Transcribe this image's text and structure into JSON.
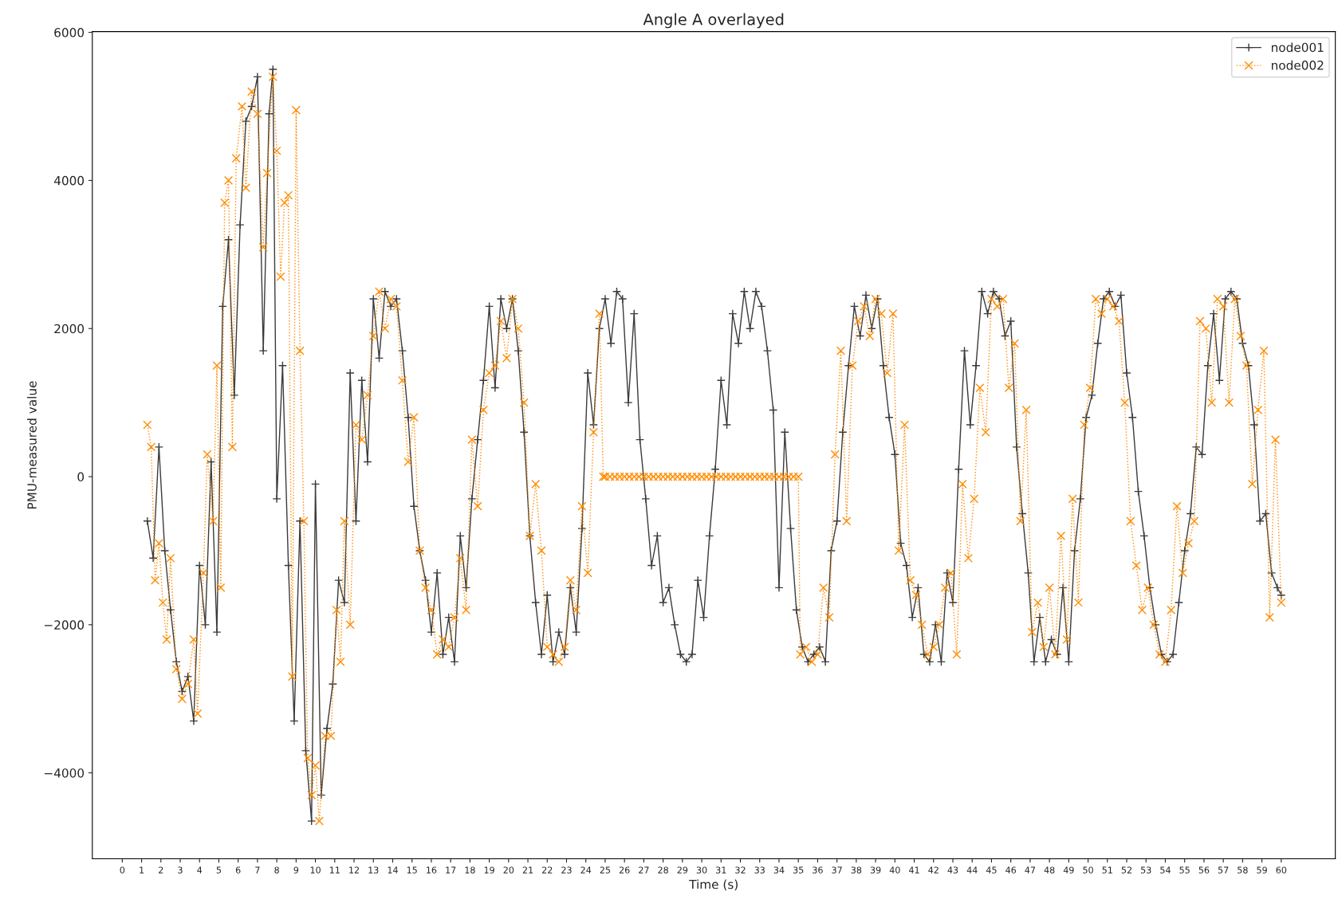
{
  "chart_data": {
    "type": "line",
    "title": "Angle A overlayed",
    "xlabel": "Time (s)",
    "ylabel": "PMU-measured value",
    "xlim": [
      -1.55,
      62.8
    ],
    "ylim": [
      -5160,
      6010
    ],
    "xticks": [
      0,
      1,
      2,
      3,
      4,
      5,
      6,
      7,
      8,
      9,
      10,
      11,
      12,
      13,
      14,
      15,
      16,
      17,
      18,
      19,
      20,
      21,
      22,
      23,
      24,
      25,
      26,
      27,
      28,
      29,
      30,
      31,
      32,
      33,
      34,
      35,
      36,
      37,
      38,
      39,
      40,
      41,
      42,
      43,
      44,
      45,
      46,
      47,
      48,
      49,
      50,
      51,
      52,
      53,
      54,
      55,
      56,
      57,
      58,
      59,
      60
    ],
    "yticks": [
      {
        "value": -4000,
        "label": "−4000"
      },
      {
        "value": -2000,
        "label": "−2000"
      },
      0,
      2000,
      4000,
      6000
    ],
    "grid": false,
    "legend": "top right",
    "series": [
      {
        "name": "node001",
        "color": "#3a3a3a",
        "marker": "cross",
        "line_style": "solid",
        "x": [
          1.3,
          1.6,
          1.9,
          2.2,
          2.5,
          2.8,
          3.1,
          3.4,
          3.7,
          4.0,
          4.3,
          4.6,
          4.9,
          5.2,
          5.5,
          5.8,
          6.1,
          6.4,
          6.7,
          7.0,
          7.3,
          7.6,
          7.8,
          8.0,
          8.3,
          8.6,
          8.9,
          9.2,
          9.5,
          9.8,
          10.0,
          10.3,
          10.6,
          10.9,
          11.2,
          11.5,
          11.8,
          12.1,
          12.4,
          12.7,
          13.0,
          13.3,
          13.6,
          13.9,
          14.2,
          14.5,
          14.8,
          15.1,
          15.4,
          15.7,
          16.0,
          16.3,
          16.6,
          16.9,
          17.2,
          17.5,
          17.8,
          18.1,
          18.4,
          18.7,
          19.0,
          19.3,
          19.6,
          19.9,
          20.2,
          20.5,
          20.8,
          21.1,
          21.4,
          21.7,
          22.0,
          22.3,
          22.6,
          22.9,
          23.2,
          23.5,
          23.8,
          24.1,
          24.4,
          24.7,
          25.0,
          25.3,
          25.6,
          25.9,
          26.2,
          26.5,
          26.8,
          27.1,
          27.4,
          27.7,
          28.0,
          28.3,
          28.6,
          28.9,
          29.2,
          29.5,
          29.8,
          30.1,
          30.4,
          30.7,
          31.0,
          31.3,
          31.6,
          31.9,
          32.2,
          32.5,
          32.8,
          33.1,
          33.4,
          33.7,
          34.0,
          34.3,
          34.6,
          34.9,
          35.2,
          35.5,
          35.8,
          36.1,
          36.4,
          36.7,
          37.0,
          37.3,
          37.6,
          37.9,
          38.2,
          38.5,
          38.8,
          39.1,
          39.4,
          39.7,
          40.0,
          40.3,
          40.6,
          40.9,
          41.2,
          41.5,
          41.8,
          42.1,
          42.4,
          42.7,
          43.0,
          43.3,
          43.6,
          43.9,
          44.2,
          44.5,
          44.8,
          45.1,
          45.4,
          45.7,
          46.0,
          46.3,
          46.6,
          46.9,
          47.2,
          47.5,
          47.8,
          48.1,
          48.4,
          48.7,
          49.0,
          49.3,
          49.6,
          49.9,
          50.2,
          50.5,
          50.8,
          51.1,
          51.4,
          51.7,
          52.0,
          52.3,
          52.6,
          52.9,
          53.2,
          53.5,
          53.8,
          54.1,
          54.4,
          54.7,
          55.0,
          55.3,
          55.6,
          55.9,
          56.2,
          56.5,
          56.8,
          57.1,
          57.4,
          57.7,
          58.0,
          58.3,
          58.6,
          58.9,
          59.2,
          59.5,
          59.8,
          60.0
        ],
        "values": [
          -600,
          -1100,
          400,
          -1000,
          -1800,
          -2500,
          -2900,
          -2700,
          -3300,
          -1200,
          -2000,
          200,
          -2100,
          2300,
          3200,
          1100,
          3400,
          4800,
          5000,
          5400,
          1700,
          4900,
          5500,
          -300,
          1500,
          -1200,
          -3300,
          -600,
          -3700,
          -4650,
          -100,
          -4300,
          -3400,
          -2800,
          -1400,
          -1700,
          1400,
          -600,
          1300,
          200,
          2400,
          1600,
          2500,
          2300,
          2400,
          1700,
          800,
          -400,
          -1000,
          -1400,
          -2100,
          -1300,
          -2400,
          -1900,
          -2500,
          -800,
          -1500,
          -300,
          500,
          1300,
          2300,
          1200,
          2400,
          2000,
          2400,
          1700,
          600,
          -800,
          -1700,
          -2400,
          -1600,
          -2500,
          -2100,
          -2400,
          -1500,
          -2100,
          -700,
          1400,
          700,
          2000,
          2400,
          1800,
          2500,
          2400,
          1000,
          2200,
          500,
          -300,
          -1200,
          -800,
          -1700,
          -1500,
          -2000,
          -2400,
          -2500,
          -2400,
          -1400,
          -1900,
          -800,
          100,
          1300,
          700,
          2200,
          1800,
          2500,
          2000,
          2500,
          2300,
          1700,
          900,
          -1500,
          600,
          -700,
          -1800,
          -2300,
          -2500,
          -2400,
          -2300,
          -2500,
          -1000,
          -600,
          600,
          1500,
          2300,
          1900,
          2450,
          2000,
          2400,
          1500,
          800,
          300,
          -900,
          -1200,
          -1900,
          -1500,
          -2400,
          -2500,
          -2000,
          -2500,
          -1300,
          -1700,
          100,
          1700,
          700,
          1500,
          2500,
          2200,
          2500,
          2400,
          1900,
          2100,
          400,
          -500,
          -1300,
          -2500,
          -1900,
          -2500,
          -2200,
          -2400,
          -1500,
          -2500,
          -1000,
          -300,
          800,
          1100,
          1800,
          2400,
          2500,
          2300,
          2450,
          1400,
          800,
          -200,
          -800,
          -1500,
          -2000,
          -2400,
          -2500,
          -2400,
          -1700,
          -1000,
          -500,
          400,
          300,
          1500,
          2200,
          1300,
          2400,
          2500,
          2400,
          1800,
          1500,
          700,
          -600,
          -500,
          -1300,
          -1500,
          -1600
        ]
      },
      {
        "name": "node002",
        "color": "#ff8c00",
        "marker": "x",
        "line_style": "dotted",
        "x": [
          1.3,
          1.5,
          1.7,
          1.9,
          2.1,
          2.3,
          2.5,
          2.8,
          3.1,
          3.4,
          3.7,
          3.9,
          4.2,
          4.4,
          4.7,
          4.9,
          5.1,
          5.3,
          5.5,
          5.7,
          5.9,
          6.2,
          6.4,
          6.7,
          7.0,
          7.3,
          7.5,
          7.8,
          8.0,
          8.2,
          8.4,
          8.6,
          8.8,
          9.0,
          9.2,
          9.4,
          9.6,
          9.8,
          10.0,
          10.2,
          10.5,
          10.8,
          11.1,
          11.3,
          11.5,
          11.8,
          12.1,
          12.4,
          12.7,
          13.0,
          13.3,
          13.6,
          13.9,
          14.2,
          14.5,
          14.8,
          15.1,
          15.4,
          15.7,
          16.0,
          16.3,
          16.6,
          16.9,
          17.2,
          17.5,
          17.8,
          18.1,
          18.4,
          18.7,
          19.0,
          19.3,
          19.6,
          19.9,
          20.2,
          20.5,
          20.8,
          21.1,
          21.4,
          21.7,
          22.0,
          22.3,
          22.6,
          22.9,
          23.2,
          23.5,
          23.8,
          24.1,
          24.4,
          24.7,
          24.9,
          25.0,
          25.25,
          25.5,
          25.75,
          26.0,
          26.25,
          26.5,
          26.75,
          27.0,
          27.25,
          27.5,
          27.75,
          28.0,
          28.25,
          28.5,
          28.75,
          29.0,
          29.25,
          29.5,
          29.75,
          30.0,
          30.25,
          30.5,
          30.75,
          31.0,
          31.25,
          31.5,
          31.75,
          32.0,
          32.25,
          32.5,
          32.75,
          33.0,
          33.25,
          33.5,
          33.75,
          34.0,
          34.25,
          34.5,
          34.75,
          35.0,
          35.1,
          35.4,
          35.7,
          36.0,
          36.3,
          36.6,
          36.9,
          37.2,
          37.5,
          37.8,
          38.1,
          38.4,
          38.7,
          39.0,
          39.3,
          39.6,
          39.9,
          40.2,
          40.5,
          40.8,
          41.1,
          41.4,
          41.7,
          42.0,
          42.3,
          42.6,
          42.9,
          43.2,
          43.5,
          43.8,
          44.1,
          44.4,
          44.7,
          45.0,
          45.3,
          45.6,
          45.9,
          46.2,
          46.5,
          46.8,
          47.1,
          47.4,
          47.7,
          48.0,
          48.3,
          48.6,
          48.9,
          49.2,
          49.5,
          49.8,
          50.1,
          50.4,
          50.7,
          51.0,
          51.3,
          51.6,
          51.9,
          52.2,
          52.5,
          52.8,
          53.1,
          53.4,
          53.7,
          54.0,
          54.3,
          54.6,
          54.9,
          55.2,
          55.5,
          55.8,
          56.1,
          56.4,
          56.7,
          57.0,
          57.3,
          57.6,
          57.9,
          58.2,
          58.5,
          58.8,
          59.1,
          59.4,
          59.7,
          60.0
        ],
        "values": [
          700,
          400,
          -1400,
          -900,
          -1700,
          -2200,
          -1100,
          -2600,
          -3000,
          -2800,
          -2200,
          -3200,
          -1300,
          300,
          -600,
          1500,
          -1500,
          3700,
          4000,
          400,
          4300,
          5000,
          3900,
          5200,
          4900,
          3100,
          4100,
          5400,
          4400,
          2700,
          3700,
          3800,
          -2700,
          4950,
          1700,
          -600,
          -3800,
          -4300,
          -3900,
          -4650,
          -3500,
          -3500,
          -1800,
          -2500,
          -600,
          -2000,
          700,
          500,
          1100,
          1900,
          2500,
          2000,
          2400,
          2300,
          1300,
          200,
          800,
          -1000,
          -1500,
          -1800,
          -2400,
          -2200,
          -2300,
          -1900,
          -1100,
          -1800,
          500,
          -400,
          900,
          1400,
          1500,
          2100,
          1600,
          2400,
          2000,
          1000,
          -800,
          -100,
          -1000,
          -2300,
          -2400,
          -2500,
          -2300,
          -1400,
          -1800,
          -400,
          -1300,
          600,
          2200,
          0,
          0,
          0,
          0,
          0,
          0,
          0,
          0,
          0,
          0,
          0,
          0,
          0,
          0,
          0,
          0,
          0,
          0,
          0,
          0,
          0,
          0,
          0,
          0,
          0,
          0,
          0,
          0,
          0,
          0,
          0,
          0,
          0,
          0,
          0,
          0,
          0,
          0,
          0,
          0,
          0,
          0,
          -2400,
          -2300,
          -2500,
          -2400,
          -1500,
          -1900,
          300,
          1700,
          -600,
          1500,
          2100,
          2300,
          1900,
          2400,
          2200,
          1400,
          2200,
          -1000,
          700,
          -1400,
          -1600,
          -2000,
          -2400,
          -2300,
          -2000,
          -1500,
          -1300,
          -2400,
          -100,
          -1100,
          -300,
          1200,
          600,
          2400,
          2300,
          2400,
          1200,
          1800,
          -600,
          900,
          -2100,
          -1700,
          -2300,
          -1500,
          -2400,
          -800,
          -2200,
          -300,
          -1700,
          700,
          1200,
          2400,
          2200,
          2400,
          2300,
          2100,
          1000,
          -600,
          -1200,
          -1800,
          -1500,
          -2000,
          -2400,
          -2500,
          -1800,
          -400,
          -1300,
          -900,
          -600,
          2100,
          2000,
          1000,
          2400,
          2300,
          1000,
          2400,
          1900,
          1500,
          -100,
          900,
          1700,
          -1900,
          500,
          -1700
        ]
      }
    ]
  }
}
